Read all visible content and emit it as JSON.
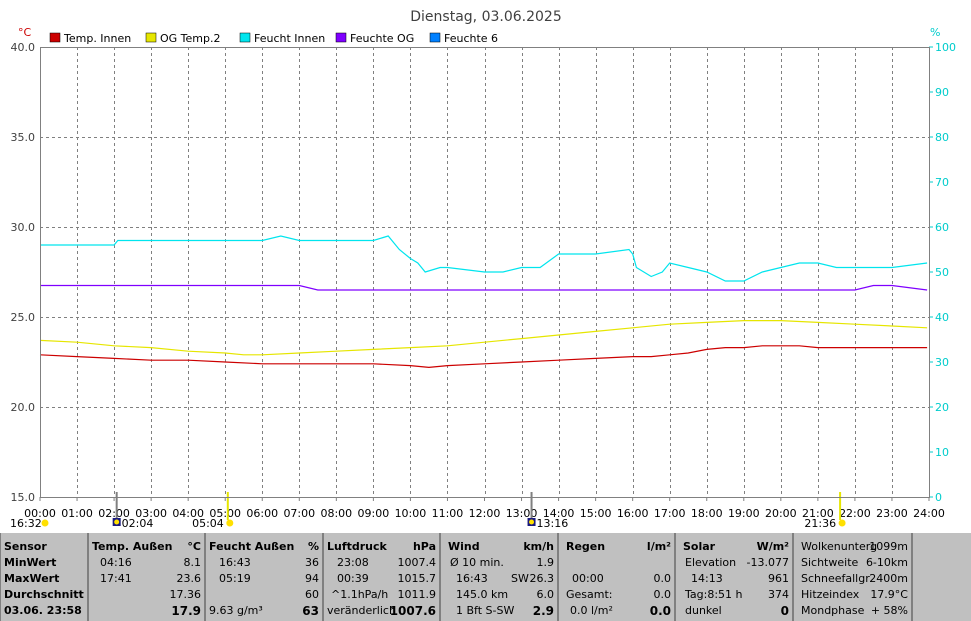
{
  "chart_data": {
    "type": "line",
    "title": "Dienstag, 03.06.2025",
    "y_left_unit": "°C",
    "y_right_unit": "%",
    "ylim_left": [
      15.0,
      40.0
    ],
    "ylim_right": [
      0,
      100
    ],
    "y_left_ticks": [
      "40.0",
      "35.0",
      "30.0",
      "25.0",
      "20.0",
      "15.0"
    ],
    "y_right_ticks": [
      "100",
      "90",
      "80",
      "70",
      "60",
      "50",
      "40",
      "30",
      "20",
      "10",
      "0"
    ],
    "xlim": [
      0,
      24
    ],
    "x_ticks": [
      "00:00",
      "01:00",
      "02:00",
      "03:00",
      "04:00",
      "05:00",
      "06:00",
      "07:00",
      "08:00",
      "09:00",
      "10:00",
      "11:00",
      "12:00",
      "13:00",
      "14:00",
      "15:00",
      "16:00",
      "17:00",
      "18:00",
      "19:00",
      "20:00",
      "21:00",
      "22:00",
      "23:00",
      "24:00"
    ],
    "grid": true,
    "legend_position": "top",
    "series": [
      {
        "name": "Temp. Innen",
        "color": "#cc0000",
        "axis": "left",
        "x": [
          0,
          1,
          2,
          3,
          4,
          5,
          6,
          7,
          8,
          9,
          10,
          10.5,
          11,
          12,
          13,
          14,
          15,
          16,
          16.5,
          17,
          17.5,
          18,
          18.5,
          19,
          19.5,
          20,
          20.5,
          21,
          22,
          23,
          23.95
        ],
        "y": [
          22.9,
          22.8,
          22.7,
          22.6,
          22.6,
          22.5,
          22.4,
          22.4,
          22.4,
          22.4,
          22.3,
          22.2,
          22.3,
          22.4,
          22.5,
          22.6,
          22.7,
          22.8,
          22.8,
          22.9,
          23.0,
          23.2,
          23.3,
          23.3,
          23.4,
          23.4,
          23.4,
          23.3,
          23.3,
          23.3,
          23.3
        ]
      },
      {
        "name": "OG Temp.2",
        "color": "#e6e600",
        "axis": "left",
        "x": [
          0,
          1,
          2,
          3,
          4,
          5,
          5.5,
          6,
          7,
          8,
          9,
          10,
          11,
          12,
          13,
          14,
          15,
          16,
          17,
          18,
          19,
          20,
          21,
          22,
          23,
          23.95
        ],
        "y": [
          23.7,
          23.6,
          23.4,
          23.3,
          23.1,
          23.0,
          22.9,
          22.9,
          23.0,
          23.1,
          23.2,
          23.3,
          23.4,
          23.6,
          23.8,
          24.0,
          24.2,
          24.4,
          24.6,
          24.7,
          24.8,
          24.8,
          24.7,
          24.6,
          24.5,
          24.4
        ]
      },
      {
        "name": "Feucht Innen",
        "color": "#00e5ee",
        "axis": "right",
        "x": [
          0,
          1,
          2,
          2.1,
          3,
          4,
          5,
          6,
          6.5,
          7,
          8,
          9,
          9.4,
          9.7,
          10,
          10.2,
          10.4,
          10.8,
          11,
          12,
          12.5,
          13,
          13.5,
          14,
          15,
          15.9,
          16,
          16.1,
          16.5,
          16.8,
          17,
          17.5,
          18,
          18.5,
          19,
          19.5,
          20,
          20.5,
          21,
          21.5,
          22,
          23,
          23.95
        ],
        "y": [
          56,
          56,
          56,
          57,
          57,
          57,
          57,
          57,
          58,
          57,
          57,
          57,
          58,
          55,
          53,
          52,
          50,
          51,
          51,
          50,
          50,
          51,
          51,
          54,
          54,
          55,
          54,
          51,
          49,
          50,
          52,
          51,
          50,
          48,
          48,
          50,
          51,
          52,
          52,
          51,
          51,
          51,
          52
        ]
      },
      {
        "name": "Feuchte OG",
        "color": "#7f00ff",
        "axis": "right",
        "x": [
          0,
          7,
          7.5,
          8,
          12,
          16,
          20,
          22,
          22.5,
          23,
          23.95
        ],
        "y": [
          47,
          47,
          46,
          46,
          46,
          46,
          46,
          46,
          47,
          47,
          46
        ]
      },
      {
        "name": "Feuchte 6",
        "color": "#0080ff",
        "axis": "right",
        "x": [],
        "y": []
      }
    ],
    "annotations": [
      {
        "label": "16:32",
        "hour": 0.0,
        "icon": "sun-low"
      },
      {
        "label": "02:04",
        "hour": 2.07,
        "icon": "moon"
      },
      {
        "label": "05:04",
        "hour": 5.07,
        "icon": "sunrise"
      },
      {
        "label": "13:16",
        "hour": 13.27,
        "icon": "moon"
      },
      {
        "label": "21:36",
        "hour": 21.6,
        "icon": "sunset"
      }
    ]
  },
  "stats": {
    "sensor": {
      "h1": "Sensor",
      "r1": "MinWert",
      "r2": "MaxWert",
      "r3": "Durchschnitt",
      "r4": "03.06. 23:58"
    },
    "temp_aussen": {
      "h1": "Temp. Außen",
      "h2": "°C",
      "r1t": "04:16",
      "r1v": "8.1",
      "r2t": "17:41",
      "r2v": "23.6",
      "r3v": "17.36",
      "r4v": "17.9"
    },
    "feucht_aussen": {
      "h1": "Feucht Außen",
      "h2": "%",
      "r1t": "16:43",
      "r1v": "36",
      "r2t": "05:19",
      "r2v": "94",
      "r3v": "60",
      "r4l": "9.63 g/m³",
      "r4v": "63"
    },
    "luftdruck": {
      "h1": "Luftdruck",
      "h2": "hPa",
      "r1t": "23:08",
      "r1v": "1007.4",
      "r2t": "00:39",
      "r2v": "1015.7",
      "r3t": "^1.1hPa/h",
      "r3v": "1011.9",
      "r4l": "veränderlich",
      "r4v": "1007.6"
    },
    "wind": {
      "h1": "Wind",
      "h2": "km/h",
      "r1t": "Ø 10 min.",
      "r1v": "1.9",
      "r2t": "16:43",
      "r2m": "SW",
      "r2v": "26.3",
      "r3t": "145.0 km",
      "r3v": "6.0",
      "r4l": "1 Bft S-SW",
      "r4v": "2.9"
    },
    "regen": {
      "h1": "Regen",
      "h2": "l/m²",
      "r2t": "00:00",
      "r2v": "0.0",
      "r3t": "Gesamt:",
      "r3v": "0.0",
      "r4l": "0.0 l/m²",
      "r4v": "0.0"
    },
    "solar": {
      "h1": "Solar",
      "h2": "W/m²",
      "r1t": "Elevation",
      "r1v": "-13.077",
      "r2t": "14:13",
      "r2v": "961",
      "r3t": "Tag:8:51 h",
      "r3v": "374",
      "r4l": "dunkel",
      "r4v": "0"
    },
    "extra": {
      "r1t": "Wolkenunterg",
      "r1v": "1099m",
      "r2t": "Sichtweite",
      "r2v": "6-10km",
      "r3t": "Schneefallgr",
      "r3v": "2400m",
      "r4t": "Hitzeindex",
      "r4v": "17.9°C",
      "r5t": "Mondphase",
      "r5v": "+ 58%"
    }
  },
  "colors": {
    "plot_border": "#808080",
    "grid": "#808080",
    "right_axis": "#00cccc",
    "left_unit": "#cc0000",
    "stats_bg": "#c0c0c0"
  }
}
